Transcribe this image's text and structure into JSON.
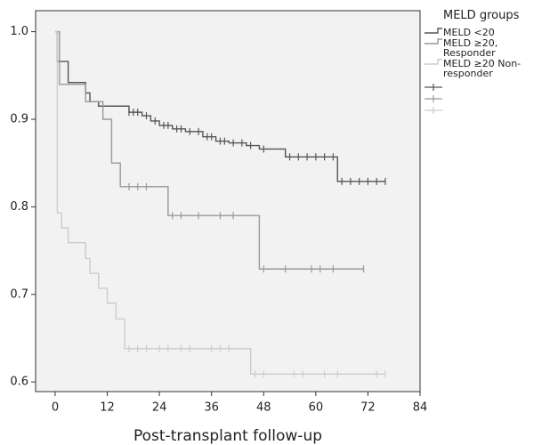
{
  "chart_data": {
    "type": "survival",
    "x_label": "Post-transplant follow-up",
    "legend_title": "MELD groups",
    "xlim": [
      -4.5,
      84
    ],
    "ylim": [
      0.589,
      1.024
    ],
    "xticks": [
      0,
      12,
      24,
      36,
      48,
      60,
      72,
      84
    ],
    "yticks": [
      0.6,
      0.7,
      0.8,
      0.9,
      {
        "value": 1,
        "label": "1.0"
      }
    ],
    "background": "#f2f2f2",
    "series": [
      {
        "name": "MELD <20",
        "color": "#555555",
        "x": [
          0,
          0.5,
          3,
          7,
          8,
          10,
          17,
          20,
          22,
          24,
          27,
          30,
          34,
          37,
          40,
          44,
          47,
          53,
          65,
          76
        ],
        "values": [
          1,
          0.966,
          0.942,
          0.93,
          0.92,
          0.915,
          0.908,
          0.904,
          0.898,
          0.893,
          0.889,
          0.886,
          0.88,
          0.875,
          0.873,
          0.87,
          0.866,
          0.857,
          0.829,
          0.829
        ],
        "censored_x": [
          17,
          18,
          19,
          21,
          23,
          25,
          26,
          28,
          29,
          31,
          33,
          35,
          36,
          38,
          39,
          41,
          43,
          45,
          48,
          54,
          56,
          58,
          60,
          62,
          64,
          66,
          68,
          70,
          72,
          74,
          76
        ],
        "censored_values": [
          0.908,
          0.908,
          0.908,
          0.904,
          0.898,
          0.893,
          0.893,
          0.889,
          0.889,
          0.886,
          0.886,
          0.88,
          0.88,
          0.875,
          0.875,
          0.873,
          0.873,
          0.87,
          0.866,
          0.857,
          0.857,
          0.857,
          0.857,
          0.857,
          0.857,
          0.829,
          0.829,
          0.829,
          0.829,
          0.829,
          0.829
        ]
      },
      {
        "name": "MELD ≥20, Responder",
        "color": "#999999",
        "x": [
          0,
          1,
          7,
          11,
          13,
          15,
          26,
          47,
          71
        ],
        "values": [
          1,
          0.94,
          0.92,
          0.9,
          0.85,
          0.823,
          0.79,
          0.729,
          0.729
        ],
        "censored_x": [
          17,
          19,
          21,
          27,
          29,
          33,
          38,
          41,
          48,
          53,
          59,
          61,
          64,
          71
        ],
        "censored_values": [
          0.823,
          0.823,
          0.823,
          0.79,
          0.79,
          0.79,
          0.79,
          0.79,
          0.729,
          0.729,
          0.729,
          0.729,
          0.729,
          0.729
        ]
      },
      {
        "name": "MELD ≥20 Non-responder",
        "color": "#cccccc",
        "x": [
          0,
          0.5,
          1.5,
          3,
          7,
          8,
          10,
          12,
          14,
          16,
          45,
          76
        ],
        "values": [
          1,
          0.793,
          0.776,
          0.759,
          0.741,
          0.724,
          0.707,
          0.69,
          0.672,
          0.638,
          0.609,
          0.609
        ],
        "censored_x": [
          17,
          19,
          21,
          24,
          26,
          29,
          31,
          36,
          38,
          40,
          46,
          48,
          55,
          57,
          62,
          65,
          74,
          76
        ],
        "censored_values": [
          0.638,
          0.638,
          0.638,
          0.638,
          0.638,
          0.638,
          0.638,
          0.638,
          0.638,
          0.638,
          0.609,
          0.609,
          0.609,
          0.609,
          0.609,
          0.609,
          0.609,
          0.609
        ]
      }
    ]
  }
}
